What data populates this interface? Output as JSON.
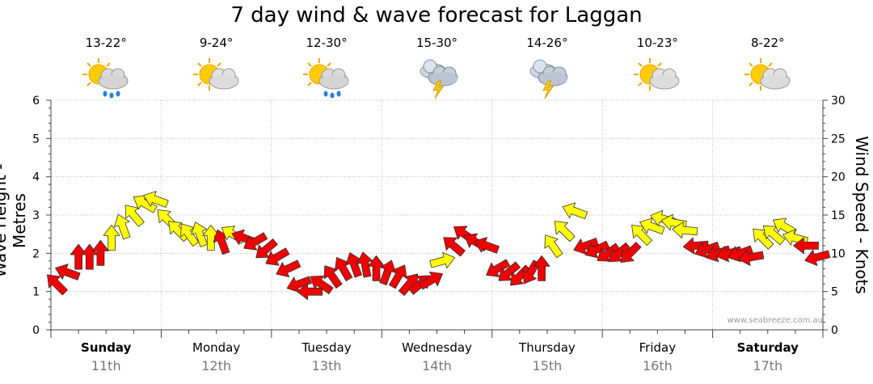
{
  "title": "7 day wind & wave forecast for Laggan",
  "credit": "www.seabreeze.com.au",
  "colors": {
    "strong": "#f00000",
    "moderate": "#ffff00",
    "outline": "#333333",
    "grid": "#bbbbbb"
  },
  "days": [
    {
      "day": "Sunday",
      "date": "11th",
      "bold": true,
      "temp": "13-22°",
      "icon": "sun-cloud-rain-icon"
    },
    {
      "day": "Monday",
      "date": "12th",
      "bold": false,
      "temp": "9-24°",
      "icon": "sun-cloud-icon"
    },
    {
      "day": "Tuesday",
      "date": "13th",
      "bold": false,
      "temp": "12-30°",
      "icon": "sun-cloud-rain-icon"
    },
    {
      "day": "Wednesday",
      "date": "14th",
      "bold": false,
      "temp": "15-30°",
      "icon": "storm-icon"
    },
    {
      "day": "Thursday",
      "date": "15th",
      "bold": false,
      "temp": "14-26°",
      "icon": "storm-icon"
    },
    {
      "day": "Friday",
      "date": "16th",
      "bold": false,
      "temp": "10-23°",
      "icon": "sun-cloud-icon"
    },
    {
      "day": "Saturday",
      "date": "17th",
      "bold": true,
      "temp": "8-22°",
      "icon": "sun-cloud-icon"
    }
  ],
  "chart_data": {
    "type": "scatter",
    "title": "7 day wind & wave forecast for Laggan",
    "ylabel_left": "Wave Height - Metres",
    "ylabel_right": "Wind Speed - Knots",
    "ylim_left": [
      0,
      6
    ],
    "ylim_right": [
      0,
      30
    ],
    "yticks_left": [
      "0",
      "1",
      "2",
      "3",
      "4",
      "5",
      "6"
    ],
    "yticks_right": [
      "0",
      "5",
      "10",
      "15",
      "20",
      "25",
      "30"
    ],
    "x_unit": "days from start of Sunday",
    "xlim": [
      0,
      7
    ],
    "grid": true,
    "series": [
      {
        "name": "Wind speed (knots) with direction arrows",
        "x": [
          0.05,
          0.15,
          0.25,
          0.35,
          0.45,
          0.55,
          0.65,
          0.75,
          0.85,
          0.95,
          1.05,
          1.15,
          1.25,
          1.35,
          1.45,
          1.55,
          1.65,
          1.75,
          1.85,
          1.95,
          2.05,
          2.15,
          2.25,
          2.35,
          2.45,
          2.55,
          2.65,
          2.75,
          2.85,
          2.95,
          3.05,
          3.15,
          3.25,
          3.35,
          3.45,
          3.55,
          3.65,
          3.75,
          3.85,
          3.95,
          4.05,
          4.15,
          4.25,
          4.35,
          4.45,
          4.55,
          4.65,
          4.75,
          4.85,
          4.95,
          5.05,
          5.15,
          5.25,
          5.35,
          5.45,
          5.55,
          5.65,
          5.75,
          5.85,
          5.95,
          6.05,
          6.15,
          6.25,
          6.35,
          6.45,
          6.55,
          6.65,
          6.75,
          6.85,
          6.95
        ],
        "values": [
          6,
          7.5,
          9.5,
          9.5,
          10,
          12,
          13.5,
          15,
          16.5,
          17,
          14.5,
          13,
          12.5,
          12.5,
          12,
          11.5,
          12.5,
          12,
          11.5,
          10.5,
          9.5,
          8,
          6,
          5,
          6,
          7,
          8,
          8.5,
          8.5,
          8,
          7.5,
          7,
          6,
          6,
          6.5,
          9,
          11,
          12.5,
          11.5,
          11,
          8,
          7.5,
          7,
          7.5,
          8,
          11,
          13,
          15.5,
          11,
          10.5,
          10,
          10,
          10,
          12.5,
          13.5,
          14.5,
          14,
          13,
          11,
          10.5,
          10,
          10,
          10,
          9.5,
          12,
          12.5,
          13.5,
          12,
          11,
          9.5
        ],
        "direction_deg": [
          225,
          200,
          270,
          270,
          270,
          270,
          250,
          230,
          210,
          200,
          225,
          225,
          235,
          250,
          270,
          250,
          210,
          200,
          150,
          140,
          150,
          155,
          160,
          180,
          215,
          235,
          240,
          250,
          260,
          270,
          290,
          300,
          310,
          320,
          330,
          345,
          220,
          215,
          210,
          200,
          150,
          140,
          135,
          120,
          270,
          235,
          225,
          200,
          160,
          155,
          145,
          140,
          135,
          225,
          200,
          195,
          190,
          185,
          175,
          160,
          160,
          165,
          160,
          170,
          225,
          220,
          210,
          195,
          180,
          165
        ],
        "strength": [
          "strong",
          "strong",
          "strong",
          "strong",
          "strong",
          "moderate",
          "moderate",
          "moderate",
          "moderate",
          "moderate",
          "moderate",
          "moderate",
          "moderate",
          "moderate",
          "moderate",
          "strong",
          "moderate",
          "strong",
          "strong",
          "strong",
          "strong",
          "strong",
          "strong",
          "strong",
          "strong",
          "strong",
          "strong",
          "strong",
          "strong",
          "strong",
          "strong",
          "strong",
          "strong",
          "strong",
          "strong",
          "moderate",
          "strong",
          "strong",
          "strong",
          "strong",
          "strong",
          "strong",
          "strong",
          "strong",
          "strong",
          "moderate",
          "moderate",
          "moderate",
          "strong",
          "strong",
          "strong",
          "strong",
          "strong",
          "moderate",
          "moderate",
          "moderate",
          "moderate",
          "moderate",
          "strong",
          "strong",
          "strong",
          "strong",
          "strong",
          "strong",
          "moderate",
          "moderate",
          "moderate",
          "moderate",
          "strong",
          "strong"
        ]
      }
    ]
  }
}
